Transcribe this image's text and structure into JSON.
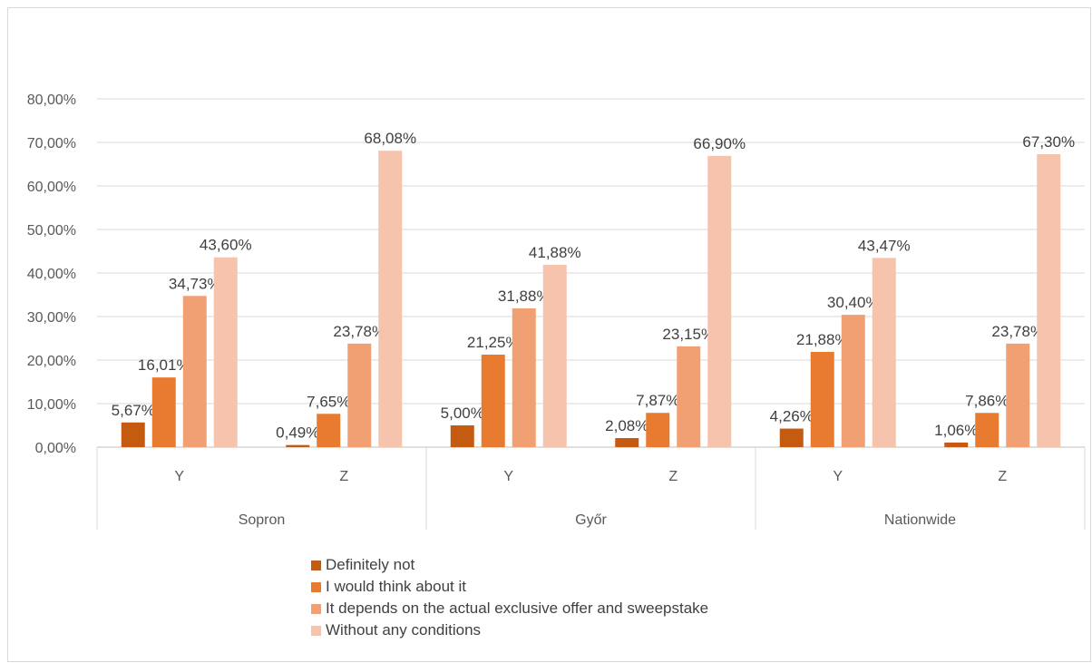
{
  "chart_data": {
    "type": "bar",
    "groups": [
      {
        "name": "Sopron",
        "categories": [
          "Y",
          "Z"
        ]
      },
      {
        "name": "Győr",
        "categories": [
          "Y",
          "Z"
        ]
      },
      {
        "name": "Nationwide",
        "categories": [
          "Y",
          "Z"
        ]
      }
    ],
    "series": [
      {
        "name": "Definitely not",
        "color": "#c55a11",
        "values": [
          5.67,
          0.49,
          5.0,
          2.08,
          4.26,
          1.06
        ],
        "labels": [
          "5,67%",
          "0,49%",
          "5,00%",
          "2,08%",
          "4,26%",
          "1,06%"
        ]
      },
      {
        "name": "I would think about it",
        "color": "#e97b30",
        "values": [
          16.01,
          7.65,
          21.25,
          7.87,
          21.88,
          7.86
        ],
        "labels": [
          "16,01%",
          "7,65%",
          "21,25%",
          "7,87%",
          "21,88%",
          "7,86%"
        ]
      },
      {
        "name": "It depends on the actual exclusive offer and sweepstake",
        "color": "#f0a072",
        "values": [
          34.73,
          23.78,
          31.88,
          23.15,
          30.4,
          23.78
        ],
        "labels": [
          "34,73%",
          "23,78%",
          "31,88%",
          "23,15%",
          "30,40%",
          "23,78%"
        ]
      },
      {
        "name": "Without any conditions",
        "color": "#f6c3ad",
        "values": [
          43.6,
          68.08,
          41.88,
          66.9,
          43.47,
          67.3
        ],
        "labels": [
          "43,60%",
          "68,08%",
          "41,88%",
          "66,90%",
          "43,47%",
          "67,30%"
        ]
      }
    ],
    "yticks": [
      "0,00%",
      "10,00%",
      "20,00%",
      "30,00%",
      "40,00%",
      "50,00%",
      "60,00%",
      "70,00%",
      "80,00%"
    ],
    "ylim": [
      0,
      80
    ],
    "grid": true,
    "legend_position": "bottom"
  }
}
